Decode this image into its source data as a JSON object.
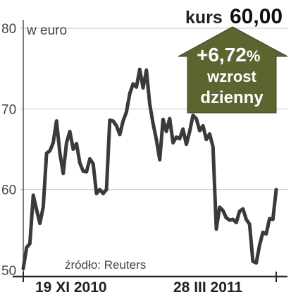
{
  "chart_data": {
    "type": "line",
    "ylabel": "w euro",
    "yticks": [
      80,
      70,
      60,
      50
    ],
    "ylim": [
      50,
      80
    ],
    "grid": true,
    "x_labels": [
      "19 XI 2010",
      "28 III 2011"
    ],
    "source": "źródło: Reuters",
    "kurs_label": "kurs",
    "kurs_value": "60,00",
    "arrow_value": "+6,72",
    "arrow_percent": "%",
    "arrow_line1": "wzrost",
    "arrow_line2": "dzienny",
    "colors": {
      "line": "#3a3a3a",
      "arrow": "#5a6530",
      "grid": "#c8c8c8"
    },
    "series": [
      {
        "values": [
          50.2,
          52.8,
          53.3,
          59.3,
          57.5,
          55.8,
          57.8,
          64.5,
          64.8,
          65.8,
          68.5,
          64.5,
          62.0,
          65.8,
          67.2,
          65.0,
          65.7,
          63.3,
          62.3,
          62.2,
          63.8,
          63.2,
          59.5,
          60.0,
          59.5,
          60.0,
          68.6,
          68.5,
          67.9,
          66.8,
          68.5,
          69.6,
          71.9,
          73.1,
          72.7,
          74.9,
          72.6,
          74.8,
          70.6,
          68.2,
          66.2,
          63.7,
          68.7,
          67.2,
          68.8,
          65.8,
          66.5,
          66.3,
          67.5,
          65.6,
          67.2,
          69.2,
          68.8,
          67.3,
          67.9,
          66.2,
          66.9,
          65.3,
          55.1,
          57.8,
          57.4,
          56.5,
          56.2,
          56.3,
          55.9,
          57.3,
          57.6,
          56.3,
          55.7,
          51.1,
          50.9,
          53.1,
          54.7,
          54.5,
          56.4,
          56.3,
          60.0
        ]
      }
    ]
  }
}
